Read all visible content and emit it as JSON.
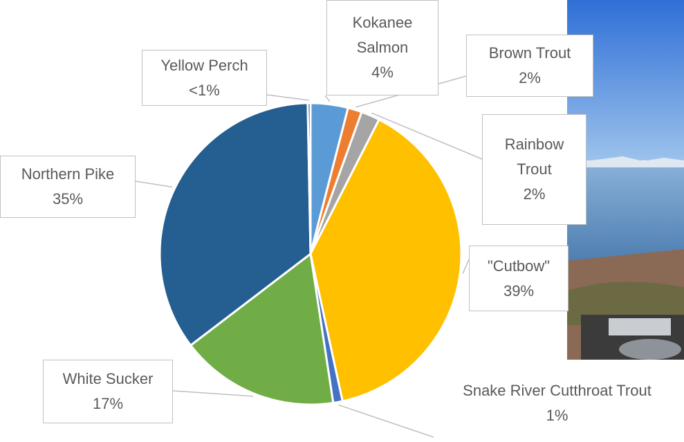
{
  "chart_data": {
    "type": "pie",
    "categories": [
      "Kokanee Salmon",
      "Brown Trout",
      "Rainbow Trout",
      "\"Cutbow\"",
      "Snake River Cutthroat Trout",
      "White Sucker",
      "Northern Pike",
      "Yellow Perch"
    ],
    "values": [
      4,
      1.5,
      2,
      39,
      1,
      17,
      35,
      0.3
    ],
    "value_labels": [
      "4%",
      "2%",
      "2%",
      "39%",
      "1%",
      "17%",
      "35%",
      "<1%"
    ],
    "colors": [
      "#5b9bd5",
      "#ed7d31",
      "#a5a5a5",
      "#ffc000",
      "#4472c4",
      "#70ad47",
      "#255e91",
      "#264478"
    ]
  }
}
